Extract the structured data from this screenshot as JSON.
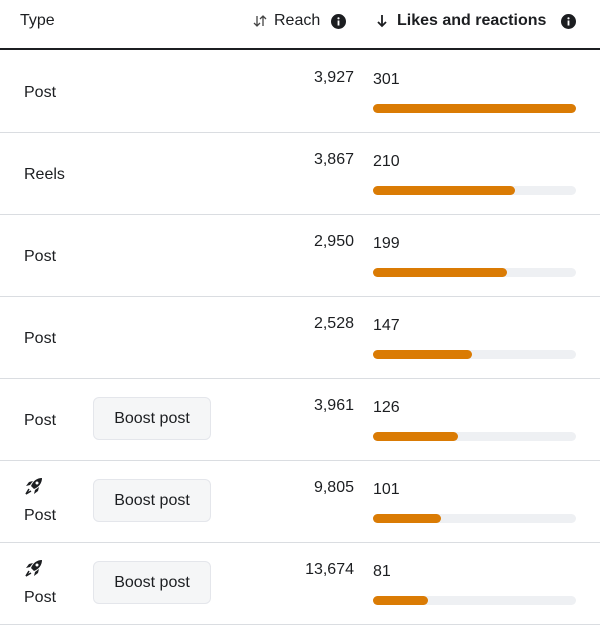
{
  "header": {
    "type": "Type",
    "reach": "Reach",
    "likes": "Likes and reactions"
  },
  "rows": [
    {
      "type": "Post",
      "reach": "3,927",
      "likes": 301
    },
    {
      "type": "Reels",
      "reach": "3,867",
      "likes": 210
    },
    {
      "type": "Post",
      "reach": "2,950",
      "likes": 199
    },
    {
      "type": "Post",
      "reach": "2,528",
      "likes": 147
    },
    {
      "type": "Post",
      "button": "Boost post",
      "reach": "3,961",
      "likes": 126
    },
    {
      "type": "Post",
      "icon": "rocket",
      "button": "Boost post",
      "reach": "9,805",
      "likes": 101
    },
    {
      "type": "Post",
      "icon": "rocket",
      "button": "Boost post",
      "reach": "13,674",
      "likes": 81
    }
  ],
  "bar_color": "#da7b04",
  "track_color": "#eef0f3"
}
